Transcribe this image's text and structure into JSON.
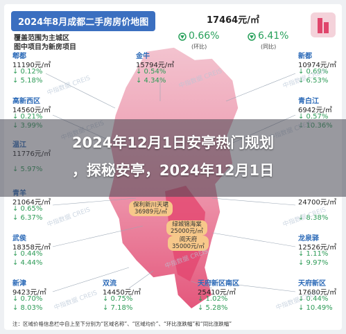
{
  "header": {
    "title": "2024年8月成都二手房房价地图",
    "notes": [
      "覆盖范围为主城区",
      "图中项目为新房项目"
    ],
    "avg_price": "17464元/㎡",
    "mom": "0.66%",
    "mom_label": "(环比)",
    "yoy": "6.41%",
    "yoy_label": "(同比)"
  },
  "districts": [
    {
      "name": "郫都",
      "price": "11190元/㎡",
      "mom": "↓ 0.12%",
      "yoy": "↓ 5.18%"
    },
    {
      "name": "金牛",
      "price": "15794元/㎡",
      "mom": "↓ 0.54%",
      "yoy": "↓ 4.34%"
    },
    {
      "name": "新都",
      "price": "10974元/㎡",
      "mom": "↓ 0.69%",
      "yoy": "↓ 6.53%"
    },
    {
      "name": "高新西区",
      "price": "14560元/㎡",
      "mom": "↓ 0.21%",
      "yoy": "↓ 3.99%"
    },
    {
      "name": "青白江",
      "price": "6942元/㎡",
      "mom": "↓ 0.57%",
      "yoy": "↓ 10.36%"
    },
    {
      "name": "温江",
      "price": "11776元/㎡",
      "yoy": "↓ 5.97%"
    },
    {
      "name": "青羊",
      "price": "21064元/㎡",
      "mom": "↓ 0.65%",
      "yoy": "↓ 6.37%"
    },
    {
      "price": "24700元/㎡",
      "yoy": "↓ 8.38%"
    },
    {
      "name": "武侯",
      "price": "18358元/㎡",
      "mom": "↓ 0.44%",
      "yoy": "↓ 4.44%"
    },
    {
      "name": "龙泉驿",
      "price": "12526元/㎡",
      "mom": "↓ 1.11%",
      "yoy": "↓ 9.97%"
    },
    {
      "name": "新津",
      "price": "9423元/㎡",
      "mom": "↓ 0.70%",
      "yoy": "↓ 8.03%"
    },
    {
      "name": "双流",
      "price": "14450元/㎡",
      "mom": "↓ 0.75%",
      "yoy": "↓ 7.18%"
    },
    {
      "name": "天府新区南区",
      "price": "25410元/㎡",
      "mom": "↓ 1.02%",
      "yoy": "↓ 5.28%"
    },
    {
      "name": "天府新区",
      "price": "17680元/㎡",
      "mom": "↓ 0.44%",
      "yoy": "↓ 10.49%"
    }
  ],
  "projects": [
    {
      "name": "保利新川天珺",
      "price": "36989元/㎡"
    },
    {
      "name": "绿城锦海棠",
      "price": "25000元/㎡"
    },
    {
      "name": "阅天府",
      "price": "35000元/㎡"
    }
  ],
  "watermark": "中指数据 CREIS",
  "footnote": "注：区域价格信息栏中自上至下分别为“区域名称”、“区域均价”、“环比涨跌幅”和“同比涨跌幅”",
  "overlay": [
    "2024年12月1日安亭热门规划",
    "，探秘安亭，2024年12月1日"
  ]
}
